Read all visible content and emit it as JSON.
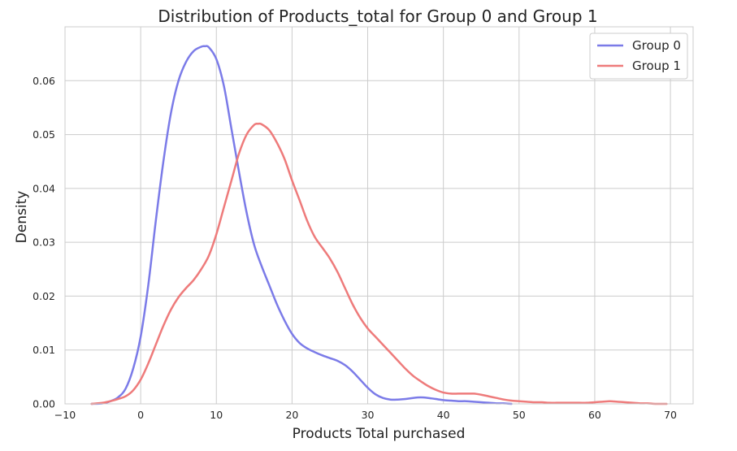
{
  "chart_data": {
    "type": "line",
    "title": "Distribution of Products_total for Group 0 and Group 1",
    "xlabel": "Products Total purchased",
    "ylabel": "Density",
    "xlim": [
      -10,
      73
    ],
    "ylim": [
      0,
      0.07
    ],
    "xticks": [
      "−10",
      "0",
      "10",
      "20",
      "30",
      "40",
      "50",
      "60",
      "70"
    ],
    "xtick_values": [
      -10,
      0,
      10,
      20,
      30,
      40,
      50,
      60,
      70
    ],
    "yticks": [
      "0.00",
      "0.01",
      "0.02",
      "0.03",
      "0.04",
      "0.05",
      "0.06"
    ],
    "ytick_values": [
      0,
      0.01,
      0.02,
      0.03,
      0.04,
      0.05,
      0.06
    ],
    "grid": true,
    "legend_position": "top-right",
    "series": [
      {
        "name": "Group 0",
        "color": "#7b7be8",
        "x": [
          -6.5,
          -5,
          -4,
          -3,
          -2,
          -1,
          0,
          1,
          2,
          3,
          4,
          5,
          6,
          7,
          8,
          8.5,
          9,
          10,
          11,
          12,
          13,
          14,
          15,
          16,
          17,
          18,
          19,
          20,
          21,
          22,
          23,
          24,
          25,
          26,
          27,
          28,
          29,
          30,
          31,
          32,
          33,
          34,
          35,
          36,
          37,
          38,
          39,
          40,
          41,
          42,
          43,
          44,
          45,
          46,
          47,
          48,
          49
        ],
        "y": [
          0.0,
          0.0001,
          0.0005,
          0.0012,
          0.0028,
          0.0065,
          0.0125,
          0.022,
          0.034,
          0.045,
          0.054,
          0.06,
          0.0635,
          0.0655,
          0.0663,
          0.0664,
          0.0662,
          0.064,
          0.059,
          0.051,
          0.043,
          0.0355,
          0.0295,
          0.0255,
          0.022,
          0.0185,
          0.0155,
          0.013,
          0.0113,
          0.0103,
          0.0096,
          0.009,
          0.0085,
          0.008,
          0.0072,
          0.006,
          0.0045,
          0.003,
          0.0018,
          0.0011,
          0.0008,
          0.0008,
          0.0009,
          0.0011,
          0.0012,
          0.0011,
          0.0009,
          0.0007,
          0.0006,
          0.0005,
          0.0005,
          0.0004,
          0.0003,
          0.0002,
          0.0001,
          0.0001,
          0.0
        ]
      },
      {
        "name": "Group 1",
        "color": "#ee7b7b",
        "x": [
          -6.5,
          -5,
          -4,
          -3,
          -2,
          -1,
          0,
          1,
          2,
          3,
          4,
          5,
          6,
          7,
          8,
          9,
          10,
          11,
          12,
          13,
          14,
          15,
          15.5,
          16,
          17,
          18,
          19,
          20,
          21,
          22,
          23,
          24,
          25,
          26,
          27,
          28,
          29,
          30,
          31,
          32,
          33,
          34,
          35,
          36,
          37,
          38,
          39,
          40,
          41,
          42,
          43,
          44,
          45,
          46,
          47,
          48,
          49,
          50,
          51,
          52,
          53,
          54,
          55,
          56,
          57,
          58,
          59,
          60,
          61,
          62,
          63,
          64,
          65,
          66,
          67,
          68,
          69.5
        ],
        "y": [
          0.0,
          0.0002,
          0.0005,
          0.0009,
          0.0014,
          0.0025,
          0.0045,
          0.0075,
          0.011,
          0.0145,
          0.0175,
          0.0198,
          0.0215,
          0.023,
          0.025,
          0.0275,
          0.0315,
          0.0365,
          0.0415,
          0.0465,
          0.05,
          0.0518,
          0.052,
          0.0519,
          0.0508,
          0.0485,
          0.0455,
          0.0415,
          0.0378,
          0.034,
          0.031,
          0.029,
          0.027,
          0.0245,
          0.0215,
          0.0185,
          0.016,
          0.014,
          0.0125,
          0.011,
          0.0095,
          0.008,
          0.0065,
          0.0052,
          0.0042,
          0.0033,
          0.0026,
          0.0021,
          0.0019,
          0.0019,
          0.0019,
          0.0019,
          0.0017,
          0.0014,
          0.0011,
          0.0008,
          0.0006,
          0.0005,
          0.0004,
          0.0003,
          0.0003,
          0.0002,
          0.0002,
          0.0002,
          0.0002,
          0.0002,
          0.0002,
          0.0003,
          0.0004,
          0.0005,
          0.0004,
          0.0003,
          0.0002,
          0.0001,
          0.0001,
          0.0,
          0.0
        ]
      }
    ]
  }
}
